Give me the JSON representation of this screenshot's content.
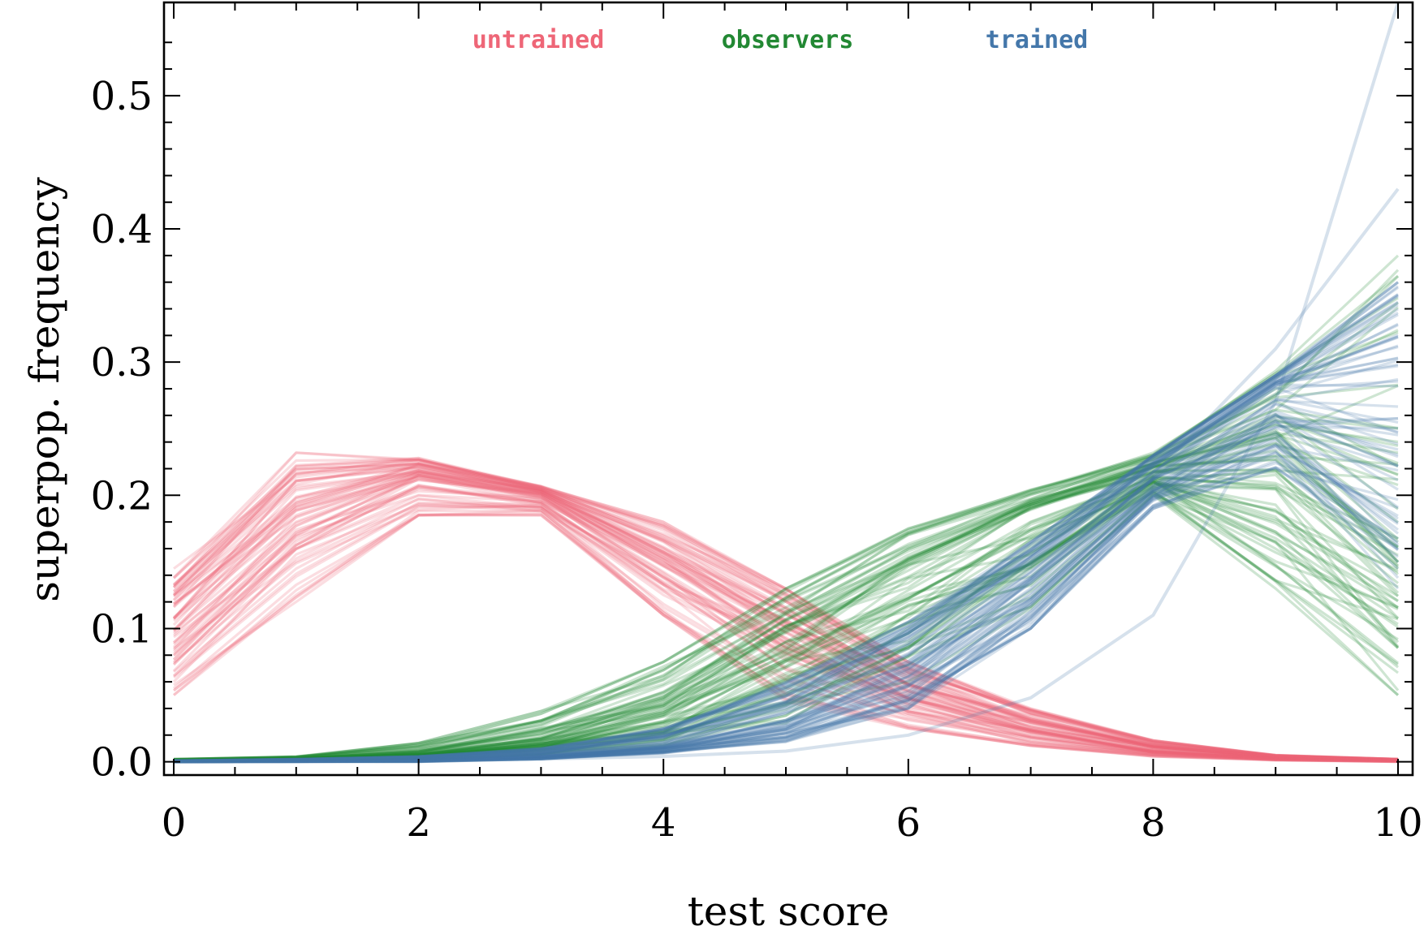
{
  "chart_data": {
    "type": "line",
    "title": "",
    "xlabel": "test score",
    "ylabel": "superpop. frequency",
    "xlim": [
      0,
      10
    ],
    "ylim": [
      -0.01,
      0.57
    ],
    "xticks": [
      0,
      2,
      4,
      6,
      8,
      10
    ],
    "xtick_labels": [
      "0",
      "2",
      "4",
      "6",
      "8",
      "10"
    ],
    "yticks": [
      0.0,
      0.1,
      0.2,
      0.3,
      0.4,
      0.5
    ],
    "ytick_labels": [
      "0.0",
      "0.1",
      "0.2",
      "0.3",
      "0.4",
      "0.5"
    ],
    "legend_placement": "top-center",
    "series": [
      {
        "name": "untrained",
        "color": "#ee6677",
        "x": [
          0,
          1,
          2,
          3,
          4,
          5,
          6,
          7,
          8,
          9,
          10
        ],
        "min": [
          0.05,
          0.12,
          0.185,
          0.185,
          0.11,
          0.045,
          0.025,
          0.012,
          0.004,
          0.001,
          0.0
        ],
        "mean": [
          0.095,
          0.18,
          0.215,
          0.2,
          0.15,
          0.095,
          0.05,
          0.025,
          0.009,
          0.003,
          0.001
        ],
        "max": [
          0.145,
          0.232,
          0.228,
          0.207,
          0.18,
          0.13,
          0.075,
          0.04,
          0.016,
          0.005,
          0.002
        ]
      },
      {
        "name": "observers",
        "color": "#228833",
        "x": [
          0,
          1,
          2,
          3,
          4,
          5,
          6,
          7,
          8,
          9,
          10
        ],
        "min": [
          0.0,
          0.001,
          0.002,
          0.005,
          0.012,
          0.025,
          0.06,
          0.115,
          0.2,
          0.13,
          0.05
        ],
        "mean": [
          0.001,
          0.002,
          0.006,
          0.018,
          0.045,
          0.095,
          0.145,
          0.19,
          0.22,
          0.24,
          0.17
        ],
        "max": [
          0.002,
          0.004,
          0.014,
          0.038,
          0.075,
          0.13,
          0.175,
          0.205,
          0.232,
          0.295,
          0.38
        ]
      },
      {
        "name": "trained",
        "color": "#4477aa",
        "x": [
          0,
          1,
          2,
          3,
          4,
          5,
          6,
          7,
          8,
          9,
          10
        ],
        "min": [
          0.0,
          0.0,
          0.0,
          0.002,
          0.006,
          0.015,
          0.04,
          0.1,
          0.19,
          0.22,
          0.13
        ],
        "mean": [
          0.0,
          0.0005,
          0.0015,
          0.005,
          0.013,
          0.035,
          0.075,
          0.14,
          0.215,
          0.28,
          0.28
        ],
        "max": [
          0.001,
          0.002,
          0.004,
          0.01,
          0.025,
          0.06,
          0.105,
          0.165,
          0.23,
          0.29,
          0.36
        ],
        "outliers": [
          [
            0.0,
            0.0,
            0.001,
            0.002,
            0.004,
            0.008,
            0.02,
            0.048,
            0.11,
            0.27,
            0.57
          ],
          [
            0.0,
            0.0005,
            0.0015,
            0.004,
            0.01,
            0.03,
            0.065,
            0.13,
            0.215,
            0.31,
            0.43
          ]
        ]
      }
    ]
  }
}
